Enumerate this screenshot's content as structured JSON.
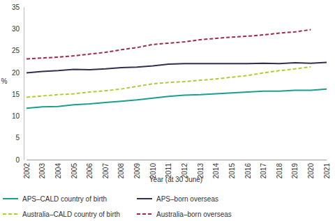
{
  "chart_data": {
    "type": "line",
    "x_label": "Year (at 30 June)",
    "y_label": "%",
    "categories": [
      "2002",
      "2003",
      "2004",
      "2005",
      "2006",
      "2007",
      "2008",
      "2009",
      "2010",
      "2011",
      "2012",
      "2013",
      "2014",
      "2015",
      "2016",
      "2017",
      "2018",
      "2019",
      "2020",
      "2021"
    ],
    "series": [
      {
        "name": "APS–CALD country of birth",
        "color": "#1a9e8f",
        "line_style": "solid",
        "values": [
          11.8,
          12.1,
          12.2,
          12.6,
          12.8,
          13.1,
          13.4,
          13.7,
          14.1,
          14.5,
          14.8,
          14.9,
          15.1,
          15.3,
          15.5,
          15.7,
          15.7,
          15.9,
          15.9,
          16.2
        ]
      },
      {
        "name": "APS–born overseas",
        "color": "#2f2f4f",
        "line_style": "solid",
        "values": [
          19.9,
          20.2,
          20.4,
          20.7,
          20.6,
          20.8,
          21.1,
          21.2,
          21.5,
          21.9,
          22.0,
          22.0,
          22.0,
          22.0,
          22.0,
          22.1,
          22.0,
          22.2,
          22.1,
          22.3
        ]
      },
      {
        "name": "Australia–CALD country of birth",
        "color": "#b5c934",
        "line_style": "dashed",
        "values": [
          14.3,
          14.6,
          14.9,
          15.1,
          15.5,
          15.8,
          16.2,
          16.8,
          17.4,
          17.7,
          17.9,
          18.2,
          18.5,
          18.9,
          19.3,
          19.9,
          20.4,
          20.8,
          21.3,
          null
        ]
      },
      {
        "name": "Australia–born overseas",
        "color": "#9c2a50",
        "line_style": "dashed",
        "values": [
          23.1,
          23.3,
          23.5,
          23.8,
          24.2,
          24.6,
          25.2,
          25.7,
          26.4,
          26.7,
          27.0,
          27.5,
          27.8,
          28.1,
          28.3,
          28.6,
          29.0,
          29.3,
          29.8,
          null
        ]
      }
    ],
    "ylim": [
      0,
      35
    ],
    "yticks": [
      0,
      5,
      10,
      15,
      20,
      25,
      30,
      35
    ],
    "grid": false,
    "legend": "bottom"
  }
}
